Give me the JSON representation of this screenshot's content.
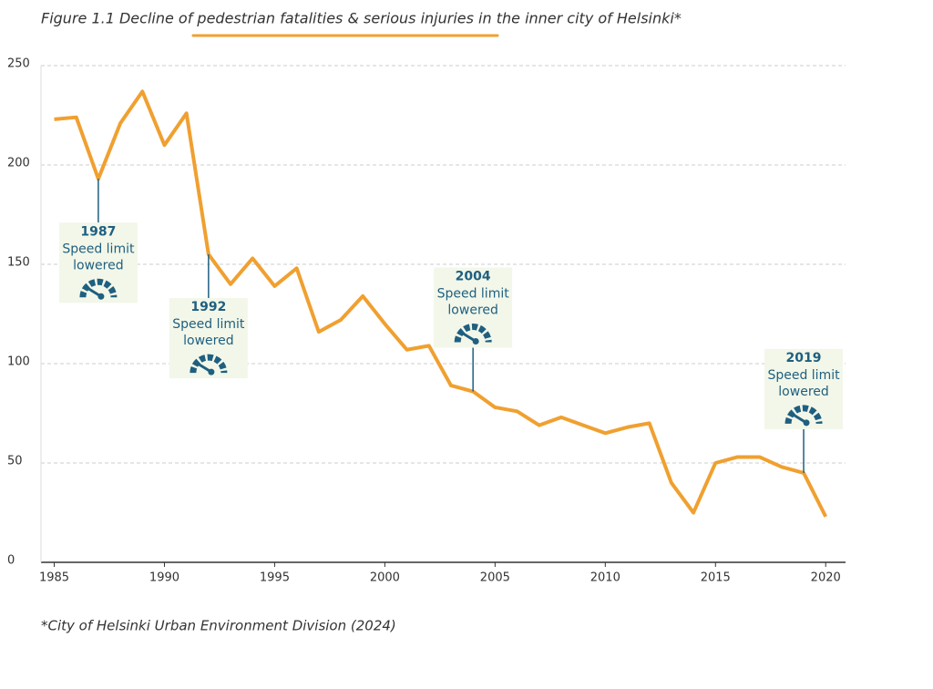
{
  "chart_data": {
    "type": "line",
    "title": "Figure 1.1 Decline of pedestrian fatalities & serious injuries in the inner city of Helsinki*",
    "source": "*City of Helsinki Urban Environment Division (2024)",
    "x": [
      1985,
      1986,
      1987,
      1988,
      1989,
      1990,
      1991,
      1992,
      1993,
      1994,
      1995,
      1996,
      1997,
      1998,
      1999,
      2000,
      2001,
      2002,
      2003,
      2004,
      2005,
      2006,
      2007,
      2008,
      2009,
      2010,
      2011,
      2012,
      2013,
      2014,
      2015,
      2016,
      2017,
      2018,
      2019,
      2020
    ],
    "series": [
      {
        "color": "#f0a030",
        "values": [
          223,
          224,
          193,
          221,
          237,
          210,
          226,
          155,
          140,
          153,
          139,
          148,
          116,
          122,
          134,
          120,
          107,
          109,
          89,
          86,
          78,
          76,
          69,
          73,
          69,
          65,
          68,
          70,
          40,
          25,
          50,
          53,
          53,
          48,
          45,
          23
        ]
      }
    ],
    "xlim": [
      1984.4,
      2020.9
    ],
    "xticks": [
      1985,
      1990,
      1995,
      2000,
      2005,
      2010,
      2015,
      2020
    ],
    "ylim": [
      0,
      250
    ],
    "yticks": [
      0,
      50,
      100,
      150,
      200,
      250
    ],
    "grid": true,
    "annotations": [
      {
        "x": 1987,
        "text": [
          "Speed limit",
          "lowered"
        ],
        "position": "below"
      },
      {
        "x": 1992,
        "text": [
          "Speed limit",
          "lowered"
        ],
        "position": "below"
      },
      {
        "x": 2004,
        "text": [
          "Speed limit",
          "lowered"
        ],
        "position": "above"
      },
      {
        "x": 2019,
        "text": [
          "Speed limit",
          "lowered"
        ],
        "position": "above"
      }
    ]
  }
}
